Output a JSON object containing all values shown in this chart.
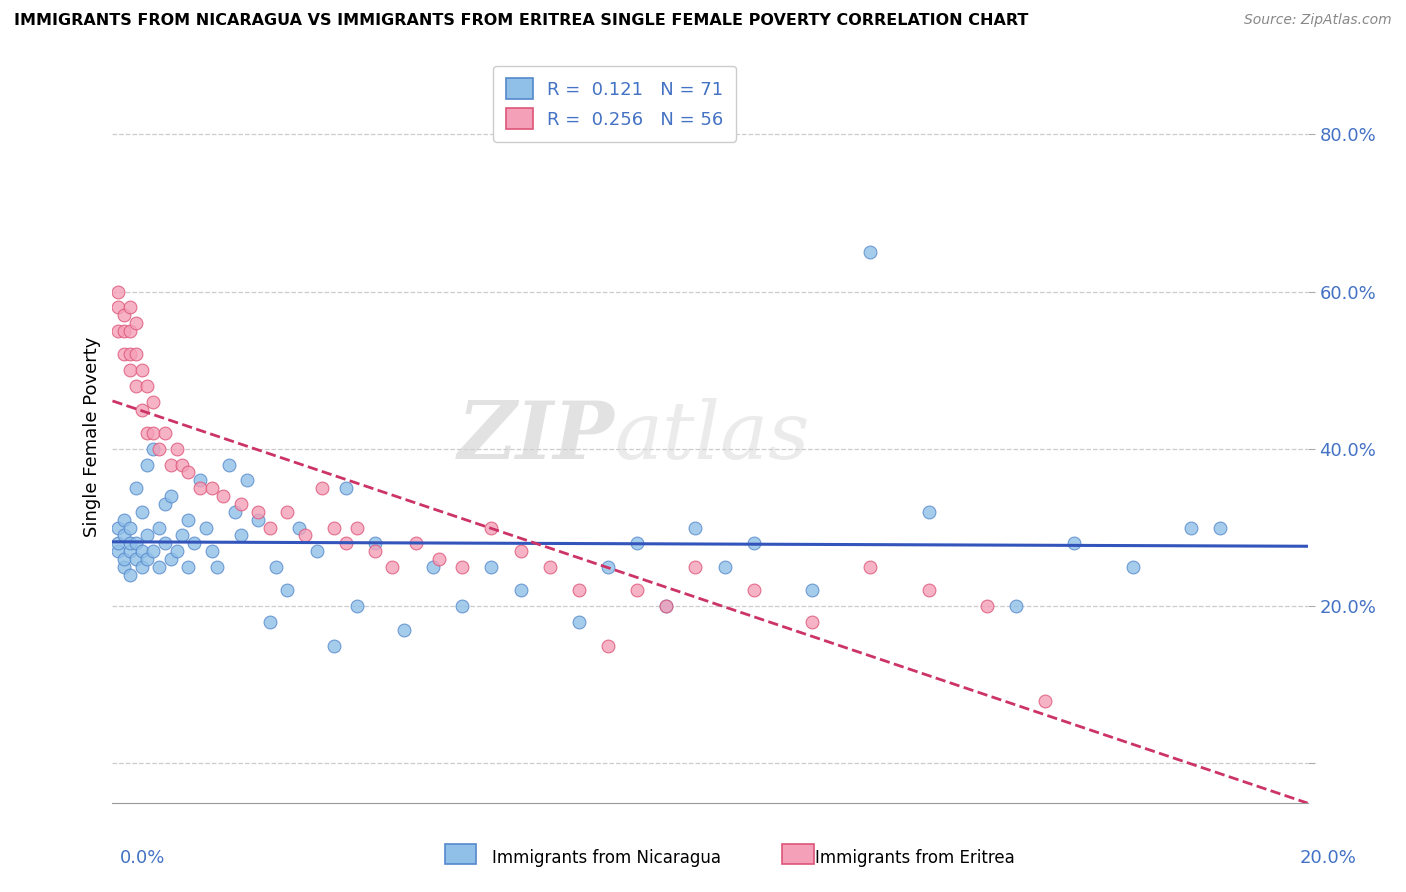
{
  "title": "IMMIGRANTS FROM NICARAGUA VS IMMIGRANTS FROM ERITREA SINGLE FEMALE POVERTY CORRELATION CHART",
  "source": "Source: ZipAtlas.com",
  "ylabel": "Single Female Poverty",
  "y_ticks": [
    0.0,
    0.2,
    0.4,
    0.6,
    0.8
  ],
  "y_tick_labels": [
    "",
    "20.0%",
    "40.0%",
    "60.0%",
    "80.0%"
  ],
  "x_range": [
    0.0,
    0.205
  ],
  "y_range": [
    -0.05,
    0.88
  ],
  "nicaragua_R": 0.121,
  "nicaragua_N": 71,
  "eritrea_R": 0.256,
  "eritrea_N": 56,
  "nicaragua_color": "#90C0E8",
  "eritrea_color": "#F4A0B8",
  "nicaragua_edge_color": "#5588CC",
  "eritrea_edge_color": "#DD5577",
  "nicaragua_line_color": "#3355BB",
  "eritrea_line_color": "#CC3366",
  "watermark_part1": "ZIP",
  "watermark_part2": "atlas",
  "legend_text_color": "#4472C4",
  "tick_label_color": "#4472C4",
  "nicaragua_x": [
    0.001,
    0.001,
    0.001,
    0.002,
    0.002,
    0.002,
    0.002,
    0.003,
    0.003,
    0.003,
    0.003,
    0.004,
    0.004,
    0.004,
    0.005,
    0.005,
    0.005,
    0.006,
    0.006,
    0.006,
    0.007,
    0.007,
    0.008,
    0.008,
    0.009,
    0.009,
    0.01,
    0.01,
    0.011,
    0.012,
    0.013,
    0.013,
    0.014,
    0.015,
    0.016,
    0.017,
    0.018,
    0.02,
    0.021,
    0.022,
    0.023,
    0.025,
    0.027,
    0.028,
    0.03,
    0.032,
    0.035,
    0.038,
    0.04,
    0.042,
    0.045,
    0.05,
    0.055,
    0.06,
    0.065,
    0.07,
    0.08,
    0.085,
    0.09,
    0.095,
    0.1,
    0.105,
    0.11,
    0.12,
    0.13,
    0.14,
    0.155,
    0.165,
    0.175,
    0.185,
    0.19
  ],
  "nicaragua_y": [
    0.27,
    0.28,
    0.3,
    0.25,
    0.26,
    0.29,
    0.31,
    0.24,
    0.27,
    0.28,
    0.3,
    0.26,
    0.28,
    0.35,
    0.25,
    0.27,
    0.32,
    0.26,
    0.29,
    0.38,
    0.27,
    0.4,
    0.25,
    0.3,
    0.28,
    0.33,
    0.26,
    0.34,
    0.27,
    0.29,
    0.25,
    0.31,
    0.28,
    0.36,
    0.3,
    0.27,
    0.25,
    0.38,
    0.32,
    0.29,
    0.36,
    0.31,
    0.18,
    0.25,
    0.22,
    0.3,
    0.27,
    0.15,
    0.35,
    0.2,
    0.28,
    0.17,
    0.25,
    0.2,
    0.25,
    0.22,
    0.18,
    0.25,
    0.28,
    0.2,
    0.3,
    0.25,
    0.28,
    0.22,
    0.65,
    0.32,
    0.2,
    0.28,
    0.25,
    0.3,
    0.3
  ],
  "eritrea_x": [
    0.001,
    0.001,
    0.001,
    0.002,
    0.002,
    0.002,
    0.003,
    0.003,
    0.003,
    0.003,
    0.004,
    0.004,
    0.004,
    0.005,
    0.005,
    0.006,
    0.006,
    0.007,
    0.007,
    0.008,
    0.009,
    0.01,
    0.011,
    0.012,
    0.013,
    0.015,
    0.017,
    0.019,
    0.022,
    0.025,
    0.027,
    0.03,
    0.033,
    0.036,
    0.038,
    0.04,
    0.042,
    0.045,
    0.048,
    0.052,
    0.056,
    0.06,
    0.065,
    0.07,
    0.075,
    0.08,
    0.085,
    0.09,
    0.095,
    0.1,
    0.11,
    0.12,
    0.13,
    0.14,
    0.15,
    0.16
  ],
  "eritrea_y": [
    0.55,
    0.58,
    0.6,
    0.52,
    0.55,
    0.57,
    0.5,
    0.52,
    0.55,
    0.58,
    0.48,
    0.52,
    0.56,
    0.45,
    0.5,
    0.42,
    0.48,
    0.42,
    0.46,
    0.4,
    0.42,
    0.38,
    0.4,
    0.38,
    0.37,
    0.35,
    0.35,
    0.34,
    0.33,
    0.32,
    0.3,
    0.32,
    0.29,
    0.35,
    0.3,
    0.28,
    0.3,
    0.27,
    0.25,
    0.28,
    0.26,
    0.25,
    0.3,
    0.27,
    0.25,
    0.22,
    0.15,
    0.22,
    0.2,
    0.25,
    0.22,
    0.18,
    0.25,
    0.22,
    0.2,
    0.08
  ]
}
